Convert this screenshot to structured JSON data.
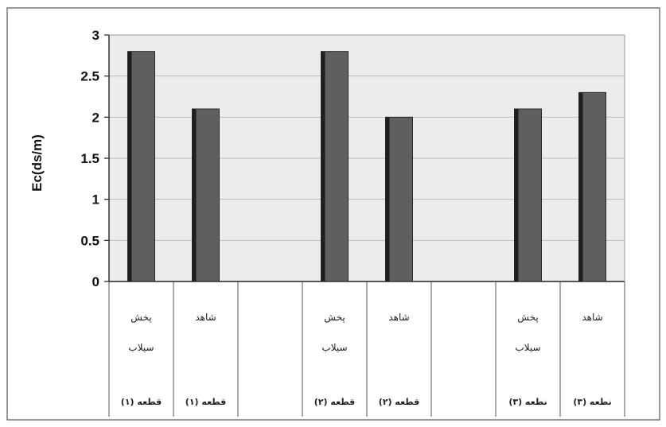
{
  "chart_data": {
    "type": "bar",
    "ylabel": "Ec(ds/m)",
    "ylim": [
      0,
      3
    ],
    "yticks": [
      "0",
      "0.5",
      "1",
      "1.5",
      "2",
      "2.5",
      "3"
    ],
    "grid": true,
    "colors": {
      "bar": "#5f5f5f",
      "bar_shadow": "#1e1e1e",
      "plot_bg": "#ececec",
      "frame": "#333333"
    },
    "categories": [
      {
        "top": "پخش",
        "middle": "سیلاب",
        "bottom": "قطعه (۱)",
        "value": 2.8
      },
      {
        "top": "شاهد",
        "middle": "",
        "bottom": "قطعه (۱)",
        "value": 2.1
      },
      {
        "top": "",
        "middle": "",
        "bottom": "",
        "value": null
      },
      {
        "top": "پخش",
        "middle": "سیلاب",
        "bottom": "قطعه (۲)",
        "value": 2.8
      },
      {
        "top": "شاهد",
        "middle": "",
        "bottom": "قطعه (۲)",
        "value": 2.0
      },
      {
        "top": "",
        "middle": "",
        "bottom": "",
        "value": null
      },
      {
        "top": "پخش",
        "middle": "سیلاب",
        "bottom": "نطعه (۳)",
        "value": 2.1
      },
      {
        "top": "شاهد",
        "middle": "",
        "bottom": "نطعه (۳)",
        "value": 2.3
      }
    ]
  }
}
